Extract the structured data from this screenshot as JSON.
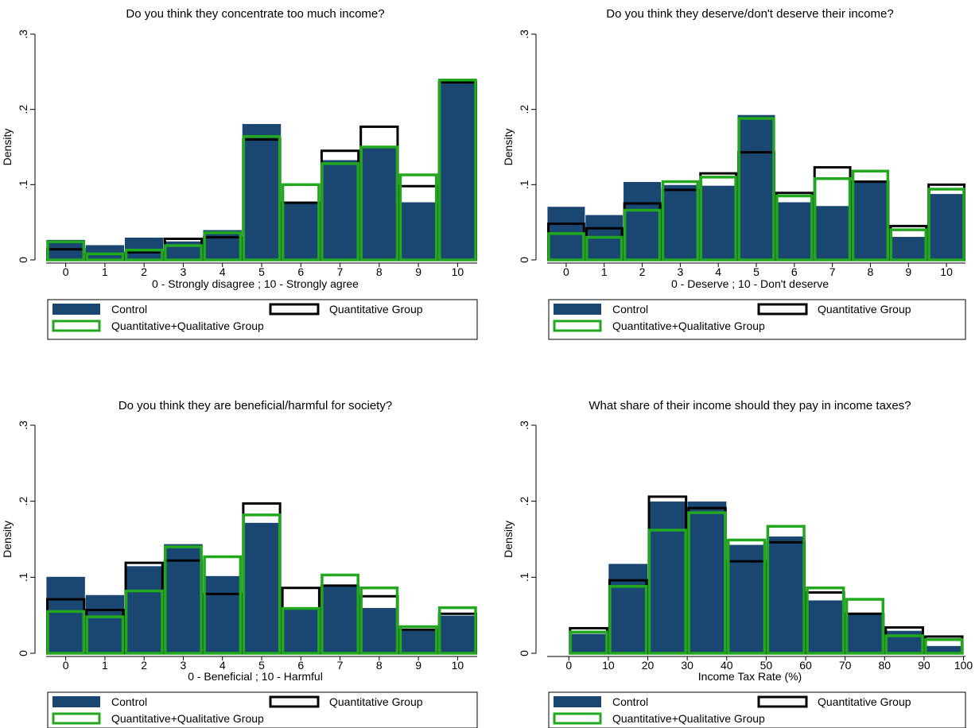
{
  "colors": {
    "control": "#1a4672",
    "quantitative": "#000000",
    "quant_qual": "#22a81e",
    "axis": "#000000",
    "legend_border": "#000000"
  },
  "chart_data": [
    {
      "type": "bar",
      "title": "Do you think they concentrate too much income?",
      "xlabel": "0 - Strongly disagree ; 10 - Strongly agree",
      "ylabel": "Density",
      "ylim": [
        0,
        0.3
      ],
      "yticks": [
        0,
        0.1,
        0.2,
        0.3
      ],
      "ytick_labels": [
        "0",
        ".1",
        ".2",
        ".3"
      ],
      "xticks": [
        0,
        1,
        2,
        3,
        4,
        5,
        6,
        7,
        8,
        9,
        10
      ],
      "xtick_labels": [
        "0",
        "1",
        "2",
        "3",
        "4",
        "5",
        "6",
        "7",
        "8",
        "9",
        "10"
      ],
      "categories": [
        0,
        1,
        2,
        3,
        4,
        5,
        6,
        7,
        8,
        9,
        10
      ],
      "grid": false,
      "legend": "bottom",
      "series": [
        {
          "name": "Control",
          "style": "filled",
          "values": [
            0.027,
            0.02,
            0.03,
            0.025,
            0.04,
            0.181,
            0.077,
            0.133,
            0.15,
            0.077,
            0.235
          ]
        },
        {
          "name": "Quantitative Group",
          "style": "outline",
          "values": [
            0.014,
            0.008,
            0.01,
            0.028,
            0.03,
            0.16,
            0.076,
            0.145,
            0.177,
            0.098,
            0.236
          ]
        },
        {
          "name": "Quantitative+Qualitative Group",
          "style": "outline",
          "values": [
            0.024,
            0.008,
            0.013,
            0.019,
            0.036,
            0.164,
            0.1,
            0.128,
            0.15,
            0.113,
            0.239
          ]
        }
      ]
    },
    {
      "type": "bar",
      "title": "Do you think they deserve/don't deserve their income?",
      "xlabel": "0 - Deserve ; 10 - Don't deserve",
      "ylabel": "Density",
      "ylim": [
        0,
        0.3
      ],
      "yticks": [
        0,
        0.1,
        0.2,
        0.3
      ],
      "ytick_labels": [
        "0",
        ".1",
        ".2",
        ".3"
      ],
      "xticks": [
        0,
        1,
        2,
        3,
        4,
        5,
        6,
        7,
        8,
        9,
        10
      ],
      "xtick_labels": [
        "0",
        "1",
        "2",
        "3",
        "4",
        "5",
        "6",
        "7",
        "8",
        "9",
        "10"
      ],
      "categories": [
        0,
        1,
        2,
        3,
        4,
        5,
        6,
        7,
        8,
        9,
        10
      ],
      "grid": false,
      "legend": "bottom",
      "series": [
        {
          "name": "Control",
          "style": "filled",
          "values": [
            0.071,
            0.06,
            0.104,
            0.1,
            0.099,
            0.193,
            0.077,
            0.072,
            0.103,
            0.031,
            0.088
          ]
        },
        {
          "name": "Quantitative Group",
          "style": "outline",
          "values": [
            0.048,
            0.042,
            0.075,
            0.093,
            0.115,
            0.143,
            0.089,
            0.123,
            0.104,
            0.045,
            0.1
          ]
        },
        {
          "name": "Quantitative+Qualitative Group",
          "style": "outline",
          "values": [
            0.035,
            0.03,
            0.066,
            0.104,
            0.11,
            0.188,
            0.085,
            0.108,
            0.118,
            0.04,
            0.094
          ]
        }
      ]
    },
    {
      "type": "bar",
      "title": "Do you think they are beneficial/harmful for society?",
      "xlabel": "0 - Beneficial ; 10 - Harmful",
      "ylabel": "Density",
      "ylim": [
        0,
        0.3
      ],
      "yticks": [
        0,
        0.1,
        0.2,
        0.3
      ],
      "ytick_labels": [
        "0",
        ".1",
        ".2",
        ".3"
      ],
      "xticks": [
        0,
        1,
        2,
        3,
        4,
        5,
        6,
        7,
        8,
        9,
        10
      ],
      "xtick_labels": [
        "0",
        "1",
        "2",
        "3",
        "4",
        "5",
        "6",
        "7",
        "8",
        "9",
        "10"
      ],
      "categories": [
        0,
        1,
        2,
        3,
        4,
        5,
        6,
        7,
        8,
        9,
        10
      ],
      "grid": false,
      "legend": "bottom",
      "series": [
        {
          "name": "Control",
          "style": "filled",
          "values": [
            0.101,
            0.077,
            0.115,
            0.144,
            0.102,
            0.172,
            0.06,
            0.09,
            0.06,
            0.03,
            0.05
          ]
        },
        {
          "name": "Quantitative Group",
          "style": "outline",
          "values": [
            0.071,
            0.057,
            0.119,
            0.122,
            0.078,
            0.197,
            0.086,
            0.089,
            0.075,
            0.031,
            0.052
          ]
        },
        {
          "name": "Quantitative+Qualitative Group",
          "style": "outline",
          "values": [
            0.055,
            0.048,
            0.082,
            0.14,
            0.127,
            0.182,
            0.059,
            0.103,
            0.086,
            0.035,
            0.06
          ]
        }
      ]
    },
    {
      "type": "bar",
      "title": "What share of their income should they pay in income taxes?",
      "xlabel": "Income Tax Rate (%)",
      "ylabel": "Density",
      "ylim": [
        0,
        0.3
      ],
      "yticks": [
        0,
        0.1,
        0.2,
        0.3
      ],
      "ytick_labels": [
        "0",
        ".1",
        ".2",
        ".3"
      ],
      "xticks": [
        0,
        10,
        20,
        30,
        40,
        50,
        60,
        70,
        80,
        90,
        100
      ],
      "xtick_labels": [
        "0",
        "10",
        "20",
        "30",
        "40",
        "50",
        "60",
        "70",
        "80",
        "90",
        "100"
      ],
      "categories": [
        "0-10",
        "10-20",
        "20-30",
        "30-40",
        "40-50",
        "50-60",
        "60-70",
        "70-80",
        "80-90",
        "90-100"
      ],
      "grid": false,
      "legend": "bottom",
      "series": [
        {
          "name": "Control",
          "style": "filled",
          "values": [
            0.026,
            0.118,
            0.2,
            0.2,
            0.143,
            0.154,
            0.07,
            0.052,
            0.03,
            0.01
          ]
        },
        {
          "name": "Quantitative Group",
          "style": "outline",
          "values": [
            0.033,
            0.096,
            0.206,
            0.191,
            0.121,
            0.146,
            0.08,
            0.052,
            0.034,
            0.022
          ]
        },
        {
          "name": "Quantitative+Qualitative Group",
          "style": "outline",
          "values": [
            0.028,
            0.088,
            0.162,
            0.185,
            0.149,
            0.167,
            0.086,
            0.071,
            0.023,
            0.018
          ]
        }
      ]
    }
  ]
}
